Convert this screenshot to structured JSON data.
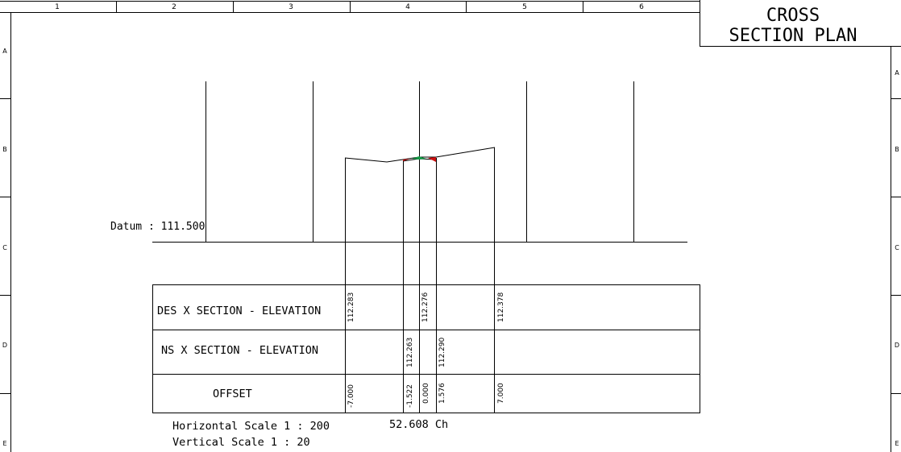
{
  "title_block": {
    "line1": "CROSS",
    "line2": "SECTION PLAN"
  },
  "grid": {
    "columns": [
      "1",
      "2",
      "3",
      "4",
      "5",
      "6"
    ],
    "rows_left": [
      "A",
      "B",
      "C",
      "D",
      "E"
    ],
    "rows_right": [
      "A",
      "B",
      "C",
      "D",
      "E"
    ]
  },
  "datum_label": "Datum : 111.500",
  "table": {
    "rows": [
      {
        "label": "DES X SECTION - ELEVATION"
      },
      {
        "label": "NS X SECTION - ELEVATION"
      },
      {
        "label": "OFFSET"
      }
    ],
    "des_elevations": [
      "112.283",
      "112.276",
      "112.378"
    ],
    "ns_elevations": [
      "112.263",
      "112.290"
    ],
    "offsets": [
      "-7.000",
      "-1.522",
      "0.000",
      "1.576",
      "7.000"
    ]
  },
  "scales": {
    "horizontal": "Horizontal Scale 1 : 200",
    "vertical": "Vertical Scale 1 : 20"
  },
  "chainage": "52.608 Ch",
  "colors": {
    "line": "#000000",
    "cut_fill": "#cc1111",
    "design_marker": "#119944"
  }
}
